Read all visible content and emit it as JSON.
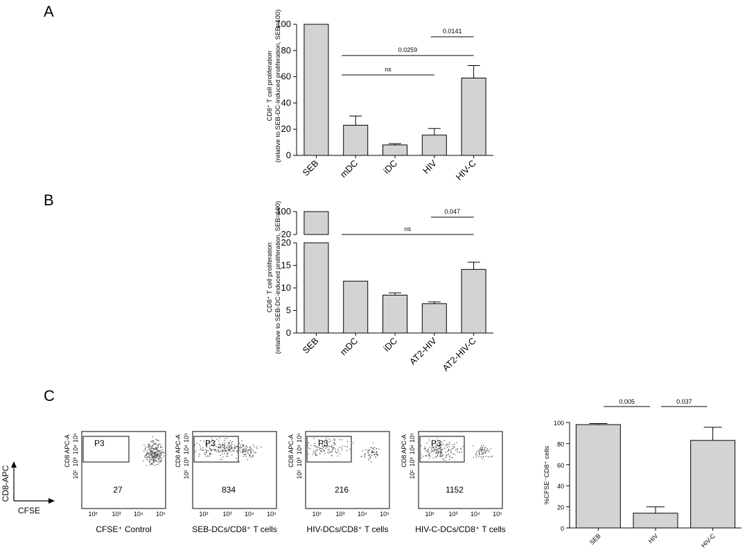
{
  "panels": {
    "a": "A",
    "b": "B",
    "c": "C"
  },
  "colors": {
    "bar_fill": "#d3d3d3",
    "stroke": "#000000",
    "dots": "#555555"
  },
  "chart_data": [
    {
      "id": "A",
      "type": "bar",
      "ylabel_line1": "CD8⁺ T cell proliferation",
      "ylabel_line2": "(relative to SEB-DC-induced proliferation, SEB=100)",
      "categories": [
        "SEB",
        "mDC",
        "iDC",
        "HIV",
        "HIV-C"
      ],
      "values": [
        100,
        23,
        8,
        15.5,
        59
      ],
      "errors": [
        0,
        7,
        1,
        5,
        9.5
      ],
      "ylim": [
        0,
        100
      ],
      "yticks": [
        "0",
        "20",
        "40",
        "60",
        "80",
        "100"
      ],
      "comparisons": [
        {
          "label": "0.0141",
          "from": "HIV",
          "to": "HIV-C"
        },
        {
          "label": "0.0259",
          "from": "mDC",
          "to": "HIV-C"
        },
        {
          "label": "ns",
          "from": "mDC",
          "to": "HIV"
        }
      ]
    },
    {
      "id": "B",
      "type": "bar",
      "broken_axis": true,
      "ylabel_line1": "CD8⁺ T cell proliferation",
      "ylabel_line2": "(relative to SEB-DC-induced proliferation, SEB=100)",
      "categories": [
        "SEB",
        "mDC",
        "iDC",
        "AT2-HIV",
        "AT2-HIV-C"
      ],
      "values": [
        100,
        11.5,
        8.4,
        6.5,
        14.1
      ],
      "errors": [
        0,
        0,
        0.5,
        0.4,
        1.6
      ],
      "ylim_lower": [
        0,
        20
      ],
      "ylim_upper": [
        20,
        100
      ],
      "yticks_lower": [
        "0",
        "5",
        "10",
        "15",
        "20"
      ],
      "yticks_upper": [
        "20",
        "100"
      ],
      "comparisons": [
        {
          "label": "0.047",
          "from": "AT2-HIV",
          "to": "AT2-HIV-C"
        },
        {
          "label": "ns",
          "from": "mDC",
          "to": "AT2-HIV-C"
        }
      ]
    },
    {
      "id": "C-bar",
      "type": "bar",
      "ylabel": "%CFSE⁻CD8⁺ cells",
      "categories": [
        "SEB",
        "HIV",
        "HIV-C"
      ],
      "values": [
        98,
        14,
        83
      ],
      "errors": [
        1,
        6,
        12.5
      ],
      "ylim": [
        0,
        100
      ],
      "yticks": [
        "0",
        "20",
        "40",
        "60",
        "80",
        "100"
      ],
      "comparisons": [
        {
          "label": "0.005",
          "from": "SEB",
          "to": "HIV"
        },
        {
          "label": "0.037",
          "from": "HIV",
          "to": "HIV-C"
        }
      ]
    },
    {
      "id": "C-flow",
      "type": "scatter",
      "xlabel": "CFSE",
      "ylabel": "CD8-APC",
      "plot_ylabel": "CD8 APC-A",
      "gate": "P3",
      "x_ticks": [
        "10²",
        "10³",
        "10⁴",
        "10⁵"
      ],
      "y_ticks": [
        "10²",
        "10³",
        "10⁴",
        "10⁵"
      ],
      "plots": [
        {
          "caption": "CFSE⁺ Control",
          "count": "27"
        },
        {
          "caption": "SEB-DCs/CD8⁺ T cells",
          "count": "834"
        },
        {
          "caption": "HIV-DCs/CD8⁺ T cells",
          "count": "216"
        },
        {
          "caption": "HIV-C-DCs/CD8⁺ T cells",
          "count": "1152"
        }
      ]
    }
  ]
}
